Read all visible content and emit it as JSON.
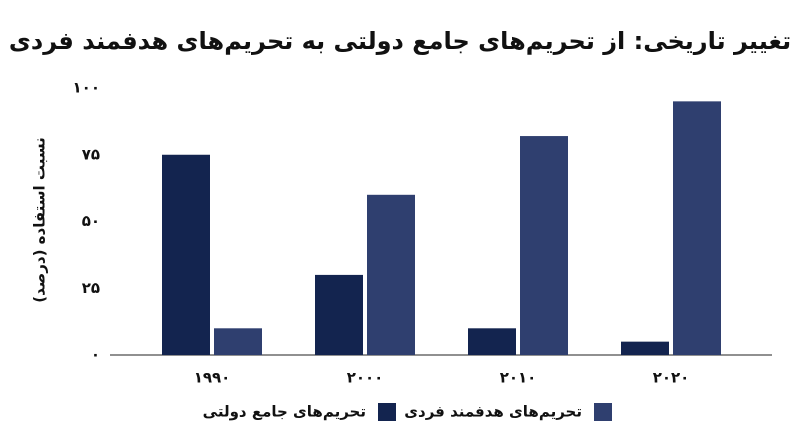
{
  "chart_data": {
    "type": "bar",
    "title": "تغییر تاریخی: از تحریم‌های جامع دولتی به تحریم‌های هدفمند فردی",
    "y_label": "نسبت استفاده (درصد)",
    "categories": [
      "۱۹۹۰",
      "۲۰۰۰",
      "۲۰۱۰",
      "۲۰۲۰"
    ],
    "series": [
      {
        "name": "تحریم‌های جامع دولتی",
        "color": "#13244f",
        "values": [
          75,
          30,
          10,
          5
        ]
      },
      {
        "name": "تحریم‌های هدفمند فردی",
        "color": "#2f3f6f",
        "values": [
          10,
          60,
          82,
          95
        ]
      }
    ],
    "ylim": [
      0,
      100
    ],
    "yticks": [
      {
        "value": 0,
        "label": "۰"
      },
      {
        "value": 25,
        "label": "۲۵"
      },
      {
        "value": 50,
        "label": "۵۰"
      },
      {
        "value": 75,
        "label": "۷۵"
      },
      {
        "value": 100,
        "label": "۱۰۰"
      }
    ],
    "grid": false
  }
}
